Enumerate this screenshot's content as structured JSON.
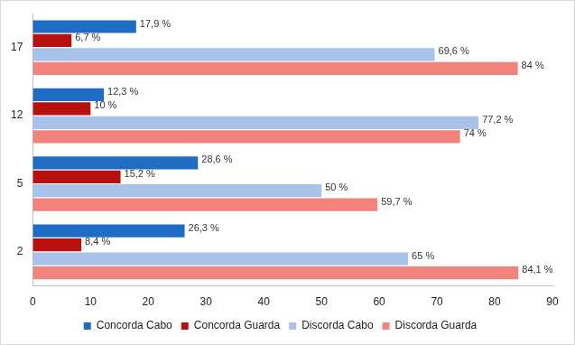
{
  "chart_data": {
    "type": "bar",
    "orientation": "horizontal",
    "categories": [
      "17",
      "12",
      "5",
      "2"
    ],
    "series": [
      {
        "name": "Concorda Cabo",
        "color": "#1f6cc4",
        "values": [
          17.9,
          12.3,
          28.6,
          26.3
        ],
        "value_labels": [
          "17,9 %",
          "12,3 %",
          "28,6 %",
          "26,3 %"
        ]
      },
      {
        "name": "Concorda Guarda",
        "color": "#b80f0f",
        "values": [
          6.7,
          10,
          15.2,
          8.4
        ],
        "value_labels": [
          "6,7 %",
          "10 %",
          "15,2 %",
          "8,4 %"
        ]
      },
      {
        "name": "Discorda Cabo",
        "color": "#a8c2ea",
        "values": [
          69.6,
          77.2,
          50,
          65
        ],
        "value_labels": [
          "69,6 %",
          "77,2 %",
          "50 %",
          "65 %"
        ]
      },
      {
        "name": "Discorda Guarda",
        "color": "#f2827c",
        "values": [
          84,
          74,
          59.7,
          84.1
        ],
        "value_labels": [
          "84 %",
          "74 %",
          "59,7 %",
          "84,1 %"
        ]
      }
    ],
    "xlim": [
      0,
      90
    ],
    "xticks": [
      0,
      10,
      20,
      30,
      40,
      50,
      60,
      70,
      80,
      90
    ],
    "grid": false,
    "legend": "bottom",
    "data_labels": true
  }
}
